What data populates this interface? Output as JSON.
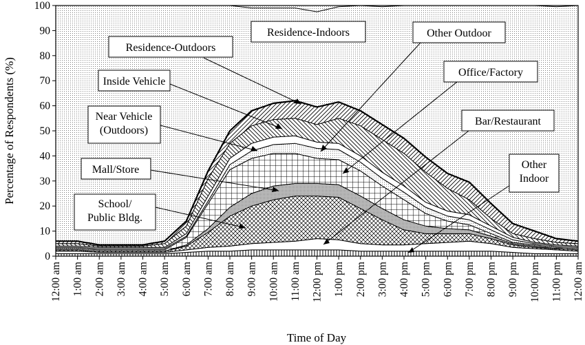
{
  "chart_data": {
    "type": "area",
    "stacked": true,
    "ylabel": "Percentage of Respondents (%)",
    "xlabel": "Time of Day",
    "ylim": [
      0,
      100
    ],
    "yticks": [
      0,
      10,
      20,
      30,
      40,
      50,
      60,
      70,
      80,
      90,
      100
    ],
    "x": [
      "12:00 am",
      "1:00 am",
      "2:00 am",
      "3:00 am",
      "4:00 am",
      "5:00 am",
      "6:00 am",
      "7:00 am",
      "8:00 am",
      "9:00 am",
      "10:00 am",
      "11:00 am",
      "12:00 pm",
      "1:00 pm",
      "2:00 pm",
      "3:00 pm",
      "4:00 pm",
      "5:00 pm",
      "6:00 pm",
      "7:00 pm",
      "8:00 pm",
      "9:00 pm",
      "10:00 pm",
      "11:00 pm",
      "12:00 am"
    ],
    "series": [
      {
        "name": "Other Indoor",
        "pattern": "vlines",
        "values": [
          1.0,
          1.0,
          1.0,
          1.0,
          1.0,
          1.0,
          1.5,
          2.0,
          2.0,
          2.5,
          2.5,
          2.5,
          2.5,
          2.5,
          2.0,
          2.0,
          2.0,
          2.0,
          2.0,
          2.0,
          2.0,
          1.5,
          1.0,
          1.0,
          1.0
        ]
      },
      {
        "name": "Bar/Restaurant",
        "pattern": "white",
        "values": [
          1.0,
          1.0,
          0.5,
          0.5,
          0.5,
          0.5,
          1.0,
          1.5,
          2.0,
          2.5,
          3.0,
          3.5,
          4.5,
          4.0,
          3.0,
          2.5,
          2.5,
          3.0,
          3.5,
          4.0,
          3.0,
          2.0,
          2.0,
          1.5,
          1.0
        ]
      },
      {
        "name": "School/ Public Bldg.",
        "pattern": "crosshatch",
        "values": [
          0.5,
          0.5,
          0.5,
          0.5,
          0.5,
          0.5,
          1.5,
          6.0,
          12.0,
          15.0,
          17.0,
          18.0,
          17.0,
          17.0,
          14.0,
          10.0,
          6.0,
          4.0,
          3.5,
          3.0,
          2.0,
          1.0,
          0.5,
          0.5,
          0.5
        ]
      },
      {
        "name": "Mall/Store",
        "pattern": "dense-dots",
        "values": [
          0.0,
          0.0,
          0.0,
          0.0,
          0.0,
          0.0,
          0.5,
          1.5,
          3.5,
          5.0,
          5.5,
          5.0,
          5.0,
          5.0,
          5.0,
          4.5,
          4.0,
          3.0,
          2.0,
          1.5,
          1.0,
          0.5,
          0.5,
          0.0,
          0.0
        ]
      },
      {
        "name": "Office/Factory",
        "pattern": "grid",
        "values": [
          0.5,
          0.5,
          0.5,
          0.5,
          0.5,
          0.5,
          3.0,
          10.0,
          15.0,
          14.0,
          13.0,
          12.0,
          10.0,
          10.0,
          10.0,
          9.0,
          8.0,
          5.0,
          3.0,
          2.0,
          1.0,
          0.5,
          0.5,
          0.5,
          0.5
        ]
      },
      {
        "name": "Other Outdoor",
        "pattern": "fine-dots",
        "values": [
          0.5,
          0.5,
          0.5,
          0.5,
          0.5,
          0.5,
          0.5,
          1.0,
          2.0,
          3.0,
          3.5,
          4.0,
          4.0,
          4.0,
          3.5,
          3.0,
          3.0,
          2.5,
          2.0,
          2.0,
          1.5,
          1.0,
          0.5,
          0.5,
          0.5
        ]
      },
      {
        "name": "Near Vehicle (Outdoors)",
        "pattern": "white",
        "values": [
          0.5,
          0.5,
          0.5,
          0.5,
          0.5,
          0.5,
          1.0,
          2.0,
          2.5,
          3.0,
          3.0,
          3.0,
          2.5,
          2.5,
          2.5,
          2.5,
          2.5,
          2.0,
          2.0,
          2.0,
          1.5,
          1.0,
          0.5,
          0.5,
          0.5
        ]
      },
      {
        "name": "Inside Vehicle",
        "pattern": "back-diag",
        "values": [
          1.0,
          1.0,
          0.5,
          0.5,
          0.5,
          1.5,
          3.0,
          7.0,
          6.0,
          7.0,
          7.0,
          7.0,
          7.0,
          10.0,
          12.0,
          13.0,
          13.0,
          12.0,
          9.0,
          6.0,
          3.0,
          1.5,
          1.5,
          1.0,
          1.0
        ]
      },
      {
        "name": "Residence-Outdoors",
        "pattern": "fwd-diag",
        "values": [
          1.0,
          1.0,
          0.5,
          0.5,
          0.5,
          1.0,
          2.0,
          3.0,
          5.0,
          6.0,
          6.5,
          7.0,
          7.0,
          6.5,
          6.0,
          6.0,
          6.0,
          6.0,
          6.0,
          7.0,
          6.0,
          4.0,
          3.0,
          1.5,
          1.0
        ]
      },
      {
        "name": "Residence-Indoors",
        "pattern": "fine-dots",
        "values": [
          94.0,
          94.0,
          95.5,
          96.0,
          95.5,
          94.0,
          86.0,
          68.0,
          52.0,
          41.0,
          38.0,
          37.0,
          38.0,
          38.0,
          42.5,
          47.0,
          53.0,
          60.5,
          67.0,
          70.5,
          79.0,
          87.0,
          90.0,
          92.5,
          94.0
        ]
      }
    ],
    "annotations": [
      "Residence-Indoors",
      "Residence-Outdoors",
      "Inside Vehicle",
      "Near Vehicle\n(Outdoors)",
      "Mall/Store",
      "School/\nPublic Bldg.",
      "Other Outdoor",
      "Office/Factory",
      "Bar/Restaurant",
      "Other\nIndoor"
    ]
  }
}
